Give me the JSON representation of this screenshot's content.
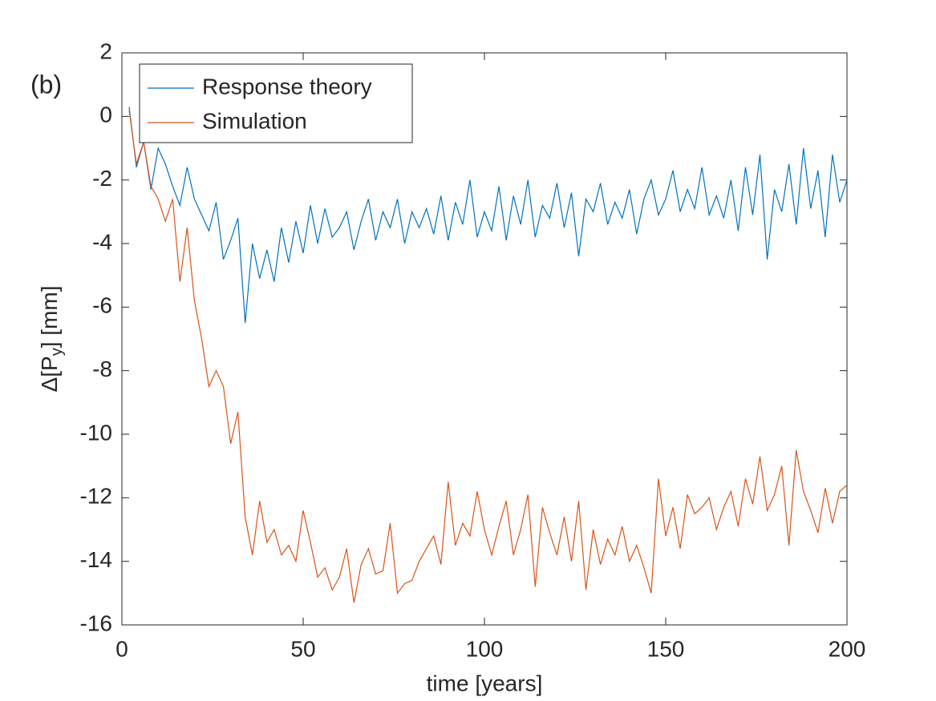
{
  "chart_data": {
    "type": "line",
    "annotation": "(b)",
    "xlabel": "time [years]",
    "ylabel": [
      "Δ[P",
      "y",
      "] [mm]"
    ],
    "x": [
      2,
      4,
      6,
      8,
      10,
      12,
      14,
      16,
      18,
      20,
      22,
      24,
      26,
      28,
      30,
      32,
      34,
      36,
      38,
      40,
      42,
      44,
      46,
      48,
      50,
      52,
      54,
      56,
      58,
      60,
      62,
      64,
      66,
      68,
      70,
      72,
      74,
      76,
      78,
      80,
      82,
      84,
      86,
      88,
      90,
      92,
      94,
      96,
      98,
      100,
      102,
      104,
      106,
      108,
      110,
      112,
      114,
      116,
      118,
      120,
      122,
      124,
      126,
      128,
      130,
      132,
      134,
      136,
      138,
      140,
      142,
      144,
      146,
      148,
      150,
      152,
      154,
      156,
      158,
      160,
      162,
      164,
      166,
      168,
      170,
      172,
      174,
      176,
      178,
      180,
      182,
      184,
      186,
      188,
      190,
      192,
      194,
      196,
      198,
      200
    ],
    "series": [
      {
        "name": "Response theory",
        "color": "#0072bd",
        "values": [
          0.3,
          -1.6,
          -0.8,
          -2.3,
          -1.0,
          -1.5,
          -2.2,
          -2.8,
          -1.6,
          -2.6,
          -3.1,
          -3.6,
          -2.7,
          -4.5,
          -3.9,
          -3.2,
          -6.5,
          -4.0,
          -5.1,
          -4.2,
          -5.2,
          -3.5,
          -4.6,
          -3.3,
          -4.3,
          -2.8,
          -4.0,
          -2.9,
          -3.8,
          -3.5,
          -3.0,
          -4.2,
          -3.3,
          -2.6,
          -3.9,
          -3.0,
          -3.5,
          -2.6,
          -4.0,
          -3.0,
          -3.5,
          -2.9,
          -3.7,
          -2.5,
          -3.9,
          -2.7,
          -3.4,
          -2.0,
          -3.8,
          -3.0,
          -3.6,
          -2.2,
          -3.9,
          -2.5,
          -3.4,
          -2.0,
          -3.8,
          -2.8,
          -3.2,
          -2.1,
          -3.5,
          -2.4,
          -4.4,
          -2.6,
          -3.0,
          -2.1,
          -3.4,
          -2.7,
          -3.2,
          -2.3,
          -3.7,
          -2.6,
          -2.0,
          -3.1,
          -2.6,
          -1.7,
          -3.0,
          -2.3,
          -2.9,
          -1.6,
          -3.1,
          -2.5,
          -3.2,
          -2.0,
          -3.6,
          -1.6,
          -3.1,
          -1.2,
          -4.5,
          -2.3,
          -3.0,
          -1.5,
          -3.4,
          -1.0,
          -2.9,
          -1.7,
          -3.8,
          -1.2,
          -2.7,
          -2.0
        ]
      },
      {
        "name": "Simulation",
        "color": "#d95319",
        "values": [
          0.2,
          -1.5,
          -0.8,
          -2.2,
          -2.6,
          -3.3,
          -2.6,
          -5.2,
          -3.5,
          -5.8,
          -7.0,
          -8.5,
          -8.0,
          -8.5,
          -10.3,
          -9.3,
          -12.6,
          -13.8,
          -12.1,
          -13.4,
          -13.0,
          -13.8,
          -13.5,
          -14.0,
          -12.4,
          -13.4,
          -14.5,
          -14.2,
          -14.9,
          -14.5,
          -13.6,
          -15.3,
          -14.1,
          -13.6,
          -14.4,
          -14.3,
          -12.8,
          -15.0,
          -14.7,
          -14.6,
          -14.0,
          -13.6,
          -13.2,
          -14.1,
          -11.5,
          -13.5,
          -12.8,
          -13.2,
          -11.8,
          -13.0,
          -13.8,
          -12.9,
          -12.1,
          -13.8,
          -13.0,
          -11.9,
          -14.8,
          -12.3,
          -13.1,
          -13.8,
          -12.6,
          -14.0,
          -12.1,
          -14.9,
          -13.0,
          -14.1,
          -13.3,
          -13.8,
          -12.9,
          -14.0,
          -13.5,
          -14.2,
          -15.0,
          -11.4,
          -13.2,
          -12.3,
          -13.6,
          -11.9,
          -12.5,
          -12.3,
          -12.0,
          -13.0,
          -12.3,
          -11.8,
          -12.9,
          -11.4,
          -12.2,
          -10.7,
          -12.4,
          -11.9,
          -11.0,
          -13.5,
          -10.5,
          -11.8,
          -12.4,
          -13.1,
          -11.7,
          -12.8,
          -11.8,
          -11.6
        ]
      }
    ],
    "xlim": [
      0,
      200
    ],
    "xticks": [
      0,
      50,
      100,
      150,
      200
    ],
    "ylim": [
      -16,
      2
    ],
    "yticks": [
      -16,
      -14,
      -12,
      -10,
      -8,
      -6,
      -4,
      -2,
      0,
      2
    ],
    "legend": "upper left"
  }
}
